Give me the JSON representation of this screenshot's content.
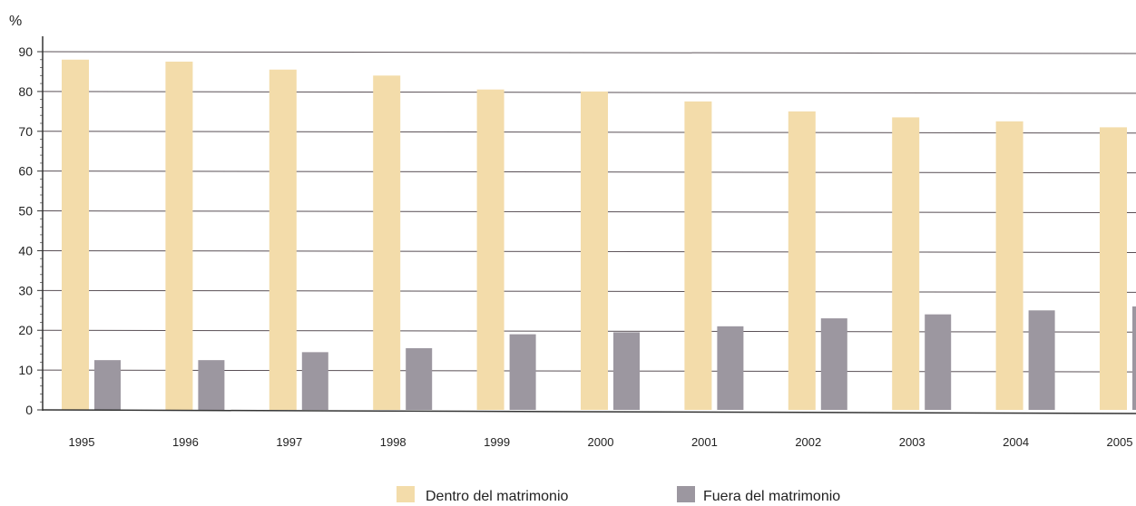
{
  "chart_data": {
    "type": "bar",
    "title": "",
    "xlabel": "",
    "ylabel": "%",
    "ylim": [
      0,
      90
    ],
    "yticks": [
      0,
      10,
      20,
      30,
      40,
      50,
      60,
      70,
      80,
      90
    ],
    "grid": true,
    "legend_position": "bottom-center",
    "categories": [
      "1995",
      "1996",
      "1997",
      "1998",
      "1999",
      "2000",
      "2001",
      "2002",
      "2003",
      "2004",
      "2005"
    ],
    "series": [
      {
        "name": "Dentro del matrimonio",
        "color": "#f3dcaa",
        "values": [
          88,
          87.5,
          85.5,
          84,
          80.5,
          80,
          77.5,
          75,
          73.5,
          72.5,
          71
        ]
      },
      {
        "name": "Fuera del matrimonio",
        "color": "#9c97a0",
        "values": [
          12.5,
          12.5,
          14.5,
          15.5,
          19,
          19.5,
          21,
          23,
          24,
          25,
          26
        ]
      }
    ]
  }
}
